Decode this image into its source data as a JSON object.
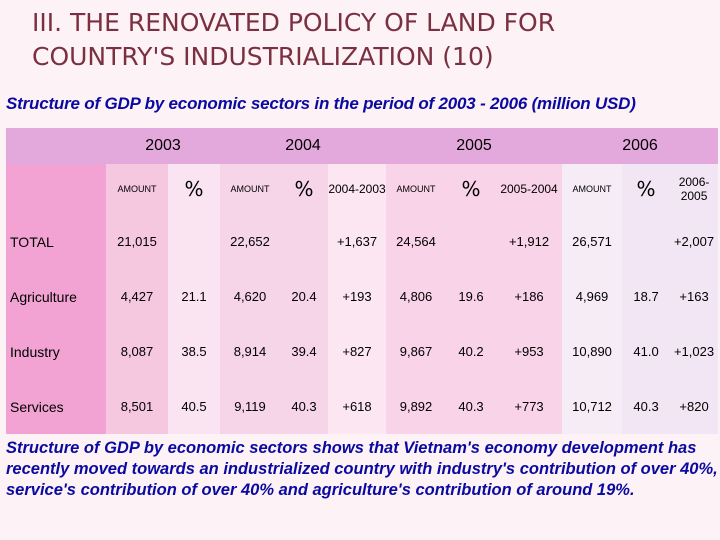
{
  "title": {
    "line1": "III. THE RENOVATED POLICY OF LAND FOR",
    "line2": "COUNTRY'S INDUSTRIALIZATION (10)"
  },
  "subtitle": "Structure of GDP by economic sectors in the period of 2003 - 2006 (million USD)",
  "table": {
    "years": [
      "2003",
      "2004",
      "2005",
      "2006"
    ],
    "subheaders": {
      "amount": "AMOUNT",
      "percent": "%",
      "chg2004": "2004-2003",
      "chg2005": "2005-2004",
      "chg2006": "2006-2005"
    },
    "rows": [
      {
        "label": "TOTAL",
        "cells": [
          "21,015",
          "",
          "22,652",
          "",
          "+1,637",
          "24,564",
          "",
          "+1,912",
          "26,571",
          "",
          "+2,007"
        ]
      },
      {
        "label": "Agriculture",
        "cells": [
          "4,427",
          "21.1",
          "4,620",
          "20.4",
          "+193",
          "4,806",
          "19.6",
          "+186",
          "4,969",
          "18.7",
          "+163"
        ]
      },
      {
        "label": "Industry",
        "cells": [
          "8,087",
          "38.5",
          "8,914",
          "39.4",
          "+827",
          "9,867",
          "40.2",
          "+953",
          "10,890",
          "41.0",
          "+1,023"
        ]
      },
      {
        "label": "Services",
        "cells": [
          "8,501",
          "40.5",
          "9,119",
          "40.3",
          "+618",
          "9,892",
          "40.3",
          "+773",
          "10,712",
          "40.3",
          "+820"
        ]
      }
    ]
  },
  "footer": "Structure of GDP by economic sectors shows that Vietnam's economy development has recently moved towards an industrialized country with industry's contribution of over 40%, service's contribution of over 40% and agriculture's contribution of around 19%."
}
